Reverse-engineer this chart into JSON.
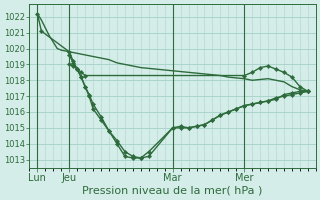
{
  "background_color": "#d5ede8",
  "grid_color": "#aad4cc",
  "line_color": "#2d6b3c",
  "tick_label_color": "#2d6b3c",
  "axis_label_color": "#2d6b3c",
  "xlabel": "Pression niveau de la mer( hPa )",
  "xlabel_fontsize": 8,
  "yticks": [
    1013,
    1014,
    1015,
    1016,
    1017,
    1018,
    1019,
    1020,
    1021,
    1022
  ],
  "ylim": [
    1012.5,
    1022.8
  ],
  "xlim": [
    0,
    72
  ],
  "xtick_positions": [
    2,
    10,
    36,
    54
  ],
  "xtick_labels": [
    "Lun",
    "Jeu",
    "Mar",
    "Mer"
  ],
  "xtick_vline_positions": [
    2,
    10,
    36,
    54
  ],
  "series": [
    {
      "x": [
        2,
        3,
        4,
        5,
        6,
        7,
        8,
        10,
        12,
        14,
        16,
        18,
        20,
        22,
        24,
        26,
        28,
        30,
        32,
        34,
        36,
        38,
        40,
        42,
        44,
        46,
        48,
        50,
        52,
        54,
        56,
        58,
        60,
        62,
        64,
        66,
        68,
        70
      ],
      "y": [
        1022.2,
        1021.8,
        1021.3,
        1020.8,
        1020.4,
        1020.0,
        1019.9,
        1019.8,
        1019.7,
        1019.6,
        1019.5,
        1019.4,
        1019.3,
        1019.1,
        1019.0,
        1018.9,
        1018.8,
        1018.75,
        1018.7,
        1018.65,
        1018.6,
        1018.55,
        1018.5,
        1018.45,
        1018.4,
        1018.35,
        1018.3,
        1018.2,
        1018.15,
        1018.1,
        1018.0,
        1018.05,
        1018.1,
        1018.0,
        1017.9,
        1017.6,
        1017.4,
        1017.3
      ],
      "marker": null,
      "lw": 1.0
    },
    {
      "x": [
        2,
        3,
        10,
        11,
        12,
        13,
        14,
        15,
        16,
        18,
        20,
        22,
        24,
        26,
        28,
        30,
        36,
        38,
        40,
        42,
        44,
        46,
        48,
        50,
        52,
        54,
        56,
        58,
        60,
        62,
        64,
        66,
        68,
        70
      ],
      "y": [
        1022.2,
        1021.1,
        1019.8,
        1019.2,
        1018.7,
        1018.2,
        1017.6,
        1017.1,
        1016.5,
        1015.7,
        1014.8,
        1014.0,
        1013.2,
        1013.1,
        1013.1,
        1013.5,
        1015.0,
        1015.1,
        1015.0,
        1015.1,
        1015.2,
        1015.5,
        1015.8,
        1016.0,
        1016.2,
        1016.4,
        1016.5,
        1016.6,
        1016.7,
        1016.9,
        1017.0,
        1017.1,
        1017.2,
        1017.3
      ],
      "marker": "D",
      "markersize": 2.2,
      "lw": 1.0
    },
    {
      "x": [
        10,
        11,
        12,
        13,
        14,
        15,
        16,
        18,
        20,
        22,
        24,
        26,
        28,
        30,
        36,
        38,
        40,
        42,
        44,
        46,
        48,
        50,
        52,
        54,
        56,
        58,
        60,
        62,
        64,
        66,
        68,
        70
      ],
      "y": [
        1019.6,
        1019.1,
        1018.7,
        1018.2,
        1017.6,
        1017.0,
        1016.2,
        1015.5,
        1014.8,
        1014.2,
        1013.5,
        1013.2,
        1013.1,
        1013.2,
        1015.0,
        1015.0,
        1015.0,
        1015.1,
        1015.2,
        1015.5,
        1015.8,
        1016.0,
        1016.2,
        1016.4,
        1016.5,
        1016.6,
        1016.7,
        1016.8,
        1017.1,
        1017.2,
        1017.3,
        1017.3
      ],
      "marker": "D",
      "markersize": 2.2,
      "lw": 1.0
    },
    {
      "x": [
        10,
        11,
        12,
        13,
        14,
        54,
        56,
        58,
        60,
        62,
        64,
        66,
        68,
        70
      ],
      "y": [
        1019.0,
        1018.9,
        1018.7,
        1018.5,
        1018.3,
        1018.3,
        1018.5,
        1018.8,
        1018.9,
        1018.7,
        1018.5,
        1018.2,
        1017.6,
        1017.3
      ],
      "marker": "D",
      "markersize": 2.2,
      "lw": 1.0
    }
  ]
}
